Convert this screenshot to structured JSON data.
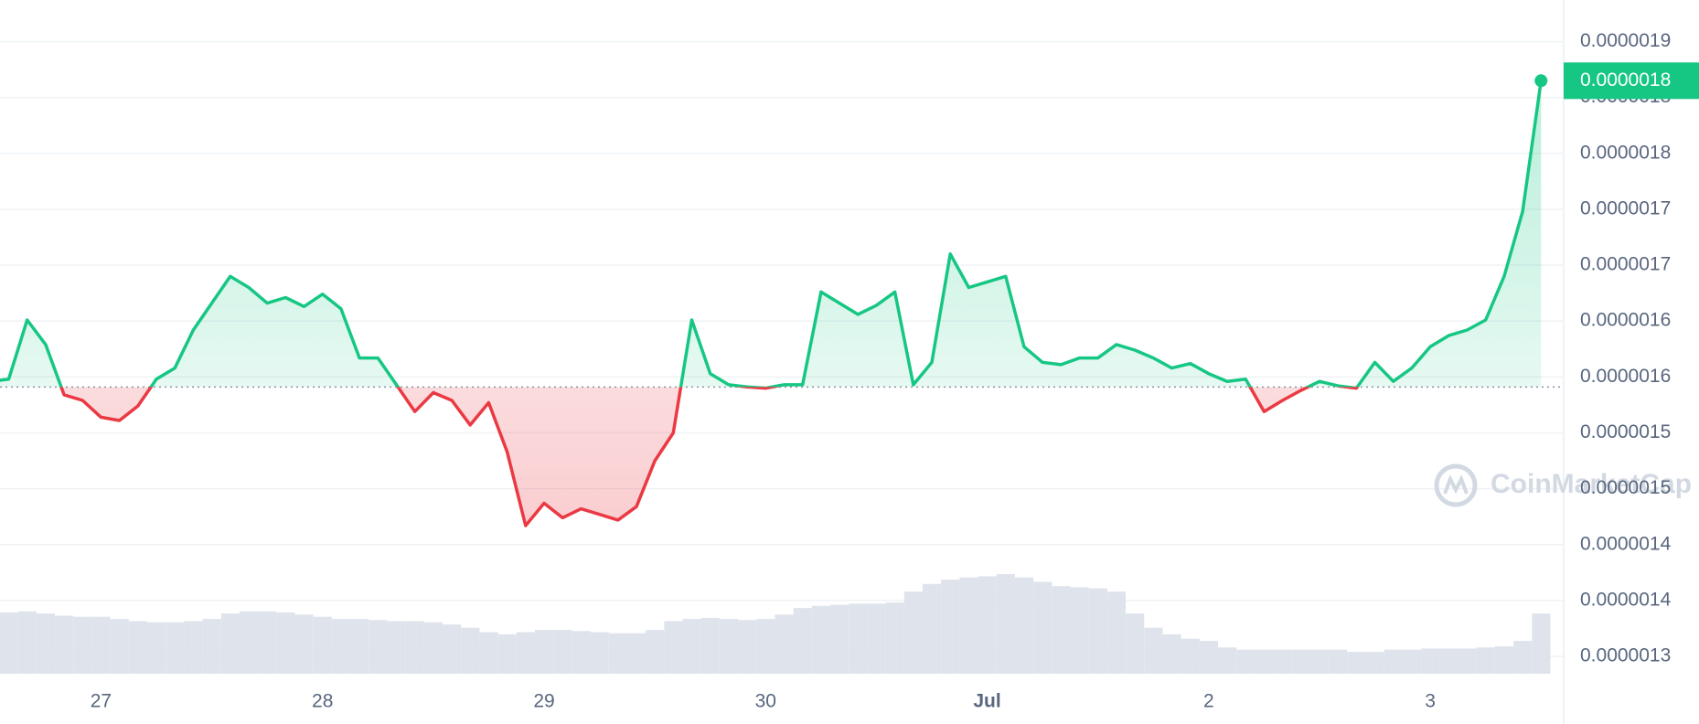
{
  "chart_data": {
    "type": "line",
    "categories": [
      null,
      null,
      null,
      null,
      null,
      null,
      "27",
      null,
      null,
      null,
      null,
      null,
      null,
      null,
      null,
      null,
      null,
      null,
      "28",
      null,
      null,
      null,
      null,
      null,
      null,
      null,
      null,
      null,
      null,
      null,
      "29",
      null,
      null,
      null,
      null,
      null,
      null,
      null,
      null,
      null,
      null,
      null,
      "30",
      null,
      null,
      null,
      null,
      null,
      null,
      null,
      null,
      null,
      null,
      null,
      "Jul",
      null,
      null,
      null,
      null,
      null,
      null,
      null,
      null,
      null,
      null,
      null,
      "2",
      null,
      null,
      null,
      null,
      null,
      null,
      null,
      null,
      null,
      null,
      null,
      "3",
      null,
      null,
      null,
      null,
      null,
      null
    ],
    "values": [
      1.546e-06,
      1.548e-06,
      1.601e-06,
      1.579e-06,
      1.534e-06,
      1.529e-06,
      1.514e-06,
      1.511e-06,
      1.524e-06,
      1.548e-06,
      1.558e-06,
      1.592e-06,
      1.616e-06,
      1.64e-06,
      1.63e-06,
      1.616e-06,
      1.621e-06,
      1.613e-06,
      1.624e-06,
      1.611e-06,
      1.567e-06,
      1.567e-06,
      1.543e-06,
      1.519e-06,
      1.536e-06,
      1.529e-06,
      1.507e-06,
      1.527e-06,
      1.483e-06,
      1.417e-06,
      1.437e-06,
      1.424e-06,
      1.432e-06,
      1.427e-06,
      1.422e-06,
      1.434e-06,
      1.475e-06,
      1.5e-06,
      1.601e-06,
      1.553e-06,
      1.543e-06,
      1.541e-06,
      1.54e-06,
      1.543e-06,
      1.543e-06,
      1.626e-06,
      1.616e-06,
      1.606e-06,
      1.614e-06,
      1.626e-06,
      1.543e-06,
      1.563e-06,
      1.66e-06,
      1.63e-06,
      1.635e-06,
      1.64e-06,
      1.577e-06,
      1.563e-06,
      1.561e-06,
      1.567e-06,
      1.567e-06,
      1.579e-06,
      1.574e-06,
      1.567e-06,
      1.558e-06,
      1.562e-06,
      1.553e-06,
      1.546e-06,
      1.548e-06,
      1.519e-06,
      1.529e-06,
      1.538e-06,
      1.546e-06,
      1.542e-06,
      1.54e-06,
      1.563e-06,
      1.546e-06,
      1.558e-06,
      1.577e-06,
      1.587e-06,
      1.592e-06,
      1.601e-06,
      1.64e-06,
      1.698e-06,
      1.815e-06
    ],
    "volume": [
      55,
      56,
      57,
      55,
      53,
      52,
      52,
      50,
      48,
      47,
      47,
      48,
      50,
      55,
      57,
      57,
      56,
      54,
      52,
      50,
      50,
      49,
      48,
      48,
      47,
      45,
      42,
      38,
      36,
      38,
      40,
      40,
      39,
      38,
      37,
      37,
      40,
      48,
      50,
      51,
      50,
      49,
      50,
      54,
      60,
      62,
      63,
      64,
      64,
      65,
      75,
      82,
      86,
      88,
      89,
      91,
      88,
      84,
      80,
      79,
      78,
      75,
      55,
      42,
      36,
      32,
      30,
      24,
      22,
      22,
      22,
      22,
      22,
      22,
      20,
      20,
      22,
      22,
      23,
      23,
      23,
      24,
      25,
      30,
      55
    ],
    "baseline": 1.541e-06,
    "current_price_label": "0.0000018",
    "up_color": "#16c784",
    "down_color": "#ea3943",
    "volume_color": "#dfe4ec",
    "ylim": [
      1.2845e-06,
      1.8872e-06
    ],
    "yticks": [
      {
        "value": 1.3e-06,
        "label": "0.0000013"
      },
      {
        "value": 1.35e-06,
        "label": "0.0000014"
      },
      {
        "value": 1.4e-06,
        "label": "0.0000014"
      },
      {
        "value": 1.45e-06,
        "label": "0.0000015"
      },
      {
        "value": 1.5e-06,
        "label": "0.0000015"
      },
      {
        "value": 1.55e-06,
        "label": "0.0000016"
      },
      {
        "value": 1.6e-06,
        "label": "0.0000016"
      },
      {
        "value": 1.65e-06,
        "label": "0.0000017"
      },
      {
        "value": 1.7e-06,
        "label": "0.0000017"
      },
      {
        "value": 1.75e-06,
        "label": "0.0000018"
      },
      {
        "value": 1.8e-06,
        "label": "0.0000018"
      },
      {
        "value": 1.85e-06,
        "label": "0.0000019"
      }
    ],
    "grid": true,
    "watermark": "CoinMarketCap"
  }
}
